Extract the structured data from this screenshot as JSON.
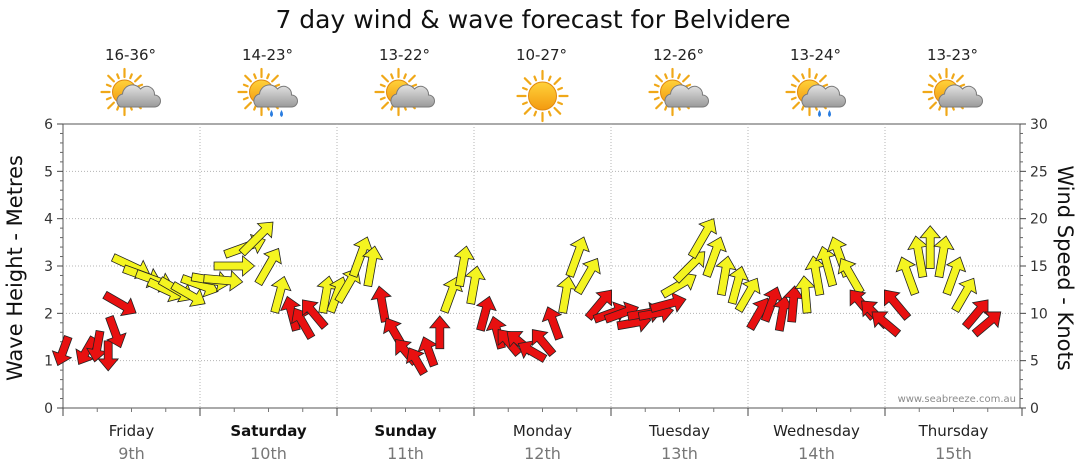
{
  "chart_data": {
    "type": "wind-wave-forecast",
    "title": "7 day wind & wave forecast for Belvidere",
    "ylabel_left": "Wave Height - Metres",
    "ylabel_right": "Wind Speed - Knots",
    "ylim_left": [
      0,
      6
    ],
    "ylim_right": [
      0,
      30
    ],
    "yticks_left": [
      "0",
      "1",
      "2",
      "3",
      "4",
      "5",
      "6"
    ],
    "yticks_right": [
      "0",
      "5",
      "10",
      "15",
      "20",
      "25",
      "30"
    ],
    "credit": "www.seabreeze.com.au",
    "colors": {
      "strong": "#e81010",
      "light": "#f4f420",
      "outline": "#222222",
      "grid": "#b4b4b4"
    },
    "days": [
      {
        "name": "Friday",
        "date": "9th",
        "temp": "16-36°",
        "icon": "sun-cloud-icon",
        "bold": false
      },
      {
        "name": "Saturday",
        "date": "10th",
        "temp": "14-23°",
        "icon": "sun-cloud-rain-icon",
        "bold": true
      },
      {
        "name": "Sunday",
        "date": "11th",
        "temp": "13-22°",
        "icon": "sun-cloud-icon",
        "bold": true
      },
      {
        "name": "Monday",
        "date": "12th",
        "temp": "10-27°",
        "icon": "sun-icon",
        "bold": false
      },
      {
        "name": "Tuesday",
        "date": "13th",
        "temp": "12-26°",
        "icon": "sun-cloud-icon",
        "bold": false
      },
      {
        "name": "Wednesday",
        "date": "14th",
        "temp": "13-24°",
        "icon": "sun-cloud-rain-icon",
        "bold": false
      },
      {
        "name": "Thursday",
        "date": "15th",
        "temp": "13-23°",
        "icon": "sun-cloud-icon",
        "bold": false
      }
    ],
    "wind": {
      "x_days": [
        0.0,
        0.17,
        0.25,
        0.33,
        0.38,
        0.42,
        0.5,
        0.58,
        0.67,
        0.75,
        0.83,
        0.92,
        1.0,
        1.08,
        1.17,
        1.25,
        1.33,
        1.42,
        1.5,
        1.58,
        1.67,
        1.75,
        1.83,
        1.92,
        2.0,
        2.08,
        2.17,
        2.25,
        2.33,
        2.42,
        2.5,
        2.58,
        2.67,
        2.75,
        2.83,
        2.92,
        3.0,
        3.08,
        3.17,
        3.25,
        3.33,
        3.42,
        3.5,
        3.58,
        3.67,
        3.75,
        3.83,
        3.92,
        4.0,
        4.08,
        4.17,
        4.25,
        4.33,
        4.42,
        4.5,
        4.58,
        4.67,
        4.75,
        4.83,
        4.92,
        5.0,
        5.08,
        5.17,
        5.25,
        5.33,
        5.42,
        5.5,
        5.58,
        5.67,
        5.75,
        5.83,
        5.92,
        6.0,
        6.08,
        6.17,
        6.25,
        6.33,
        6.42,
        6.5,
        6.58,
        6.67,
        6.75
      ],
      "knots": [
        6,
        6,
        6.5,
        5.5,
        8,
        11,
        15,
        14,
        13.5,
        12.5,
        12.5,
        12,
        13,
        13.5,
        13.5,
        15,
        17,
        18,
        15,
        12,
        10,
        9,
        10,
        12,
        12,
        13,
        16,
        15,
        11,
        8,
        6,
        5,
        6,
        8,
        12,
        15,
        13,
        10,
        8,
        7,
        7,
        6,
        7,
        9,
        12,
        16,
        14,
        11,
        10,
        10,
        9,
        10,
        10,
        11,
        13,
        15,
        18,
        16,
        14,
        13,
        12,
        10,
        11,
        10,
        11,
        12,
        14,
        15,
        16,
        14,
        11,
        10,
        9,
        11,
        14,
        16,
        17,
        16,
        14,
        12,
        10,
        9
      ],
      "dir_deg": [
        200,
        210,
        190,
        180,
        160,
        120,
        115,
        110,
        110,
        115,
        120,
        120,
        110,
        100,
        95,
        90,
        70,
        45,
        30,
        15,
        345,
        330,
        320,
        10,
        20,
        30,
        20,
        10,
        350,
        330,
        320,
        330,
        340,
        0,
        20,
        10,
        10,
        15,
        345,
        320,
        310,
        300,
        320,
        340,
        10,
        20,
        30,
        40,
        70,
        70,
        80,
        80,
        80,
        75,
        60,
        45,
        30,
        20,
        10,
        15,
        30,
        30,
        20,
        10,
        5,
        355,
        350,
        345,
        340,
        330,
        320,
        315,
        310,
        320,
        340,
        350,
        0,
        10,
        20,
        30,
        40,
        50
      ]
    }
  }
}
